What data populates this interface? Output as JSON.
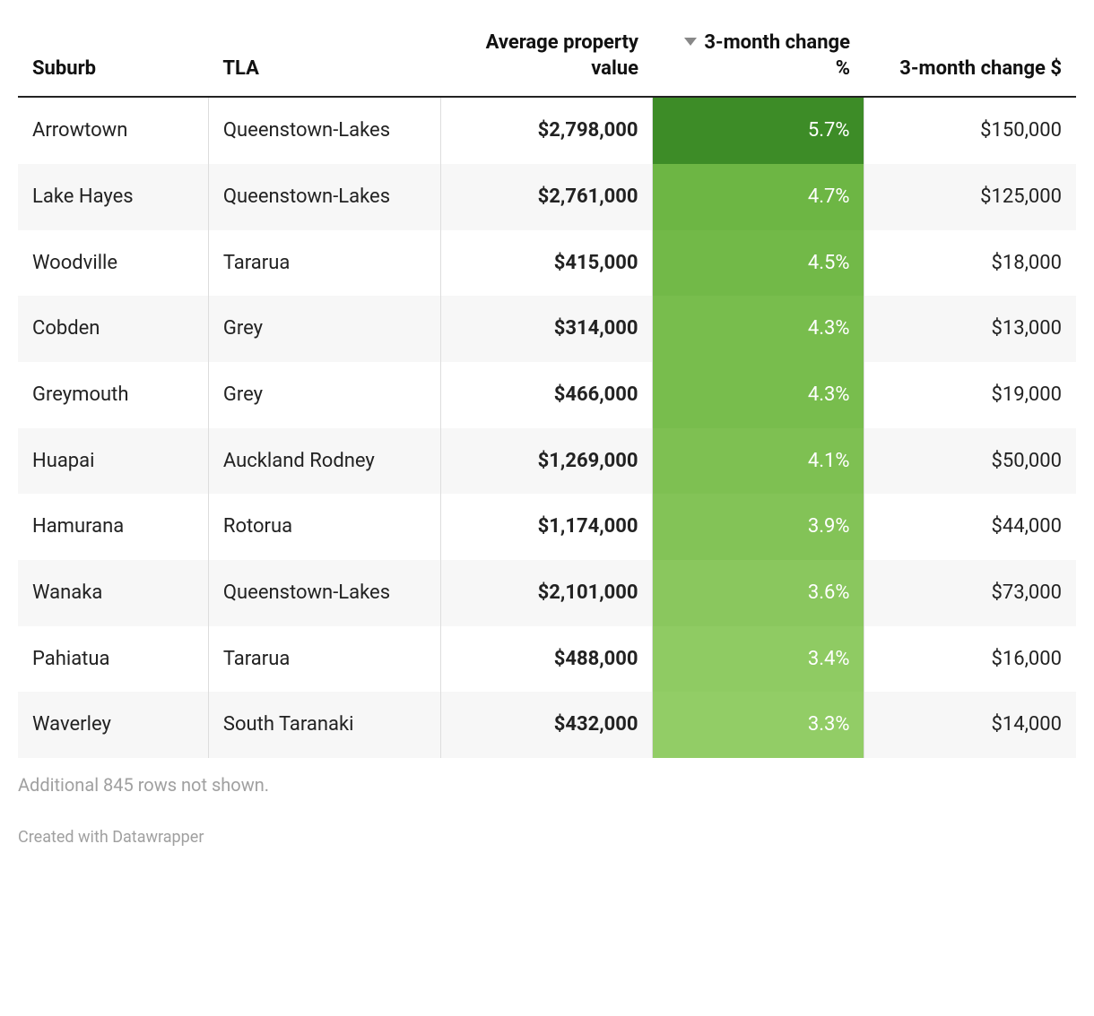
{
  "table": {
    "columns": [
      {
        "key": "suburb",
        "label": "Suburb",
        "align": "left",
        "bold": false,
        "heat": false,
        "width": "18%"
      },
      {
        "key": "tla",
        "label": "TLA",
        "align": "left",
        "bold": false,
        "heat": false,
        "width": "22%"
      },
      {
        "key": "avg_value",
        "label": "Average property value",
        "align": "right",
        "bold": true,
        "heat": false,
        "width": "20%"
      },
      {
        "key": "change_pct",
        "label": "3-month change %",
        "align": "right",
        "bold": false,
        "heat": true,
        "width": "20%",
        "sorted_desc": true
      },
      {
        "key": "change_usd",
        "label": "3-month change $",
        "align": "right",
        "bold": false,
        "heat": false,
        "width": "20%"
      }
    ],
    "rows": [
      {
        "suburb": "Arrowtown",
        "tla": "Queenstown-Lakes",
        "avg_value": "$2,798,000",
        "change_pct": "5.7%",
        "change_usd": "$150,000",
        "pct_color": "#3d8c27"
      },
      {
        "suburb": "Lake Hayes",
        "tla": "Queenstown-Lakes",
        "avg_value": "$2,761,000",
        "change_pct": "4.7%",
        "change_usd": "$125,000",
        "pct_color": "#6db644"
      },
      {
        "suburb": "Woodville",
        "tla": "Tararua",
        "avg_value": "$415,000",
        "change_pct": "4.5%",
        "change_usd": "$18,000",
        "pct_color": "#72b948"
      },
      {
        "suburb": "Cobden",
        "tla": "Grey",
        "avg_value": "$314,000",
        "change_pct": "4.3%",
        "change_usd": "$13,000",
        "pct_color": "#78bd4d"
      },
      {
        "suburb": "Greymouth",
        "tla": "Grey",
        "avg_value": "$466,000",
        "change_pct": "4.3%",
        "change_usd": "$19,000",
        "pct_color": "#78bd4d"
      },
      {
        "suburb": "Huapai",
        "tla": "Auckland Rodney",
        "avg_value": "$1,269,000",
        "change_pct": "4.1%",
        "change_usd": "$50,000",
        "pct_color": "#7ec052"
      },
      {
        "suburb": "Hamurana",
        "tla": "Rotorua",
        "avg_value": "$1,174,000",
        "change_pct": "3.9%",
        "change_usd": "$44,000",
        "pct_color": "#83c357"
      },
      {
        "suburb": "Wanaka",
        "tla": "Queenstown-Lakes",
        "avg_value": "$2,101,000",
        "change_pct": "3.6%",
        "change_usd": "$73,000",
        "pct_color": "#8ac75e"
      },
      {
        "suburb": "Pahiatua",
        "tla": "Tararua",
        "avg_value": "$488,000",
        "change_pct": "3.4%",
        "change_usd": "$16,000",
        "pct_color": "#8fcb63"
      },
      {
        "suburb": "Waverley",
        "tla": "South Taranaki",
        "avg_value": "$432,000",
        "change_pct": "3.3%",
        "change_usd": "$14,000",
        "pct_color": "#92cd66"
      }
    ],
    "hidden_rows_note": "Additional 845 rows not shown.",
    "credit": "Created with Datawrapper",
    "colors": {
      "header_text": "#111111",
      "body_text": "#222222",
      "row_even_bg": "#ffffff",
      "row_odd_bg": "#f7f7f7",
      "border": "#dddddd",
      "header_underline": "#222222",
      "note_text": "#a0a0a0",
      "sort_arrow": "#888888",
      "pct_text": "#ffffff"
    },
    "typography": {
      "header_fontsize_pt": 16,
      "body_fontsize_pt": 16,
      "note_fontsize_pt": 15,
      "credit_fontsize_pt": 14,
      "font_family": "Roboto / system sans-serif",
      "bold_columns": [
        "avg_value"
      ]
    }
  }
}
